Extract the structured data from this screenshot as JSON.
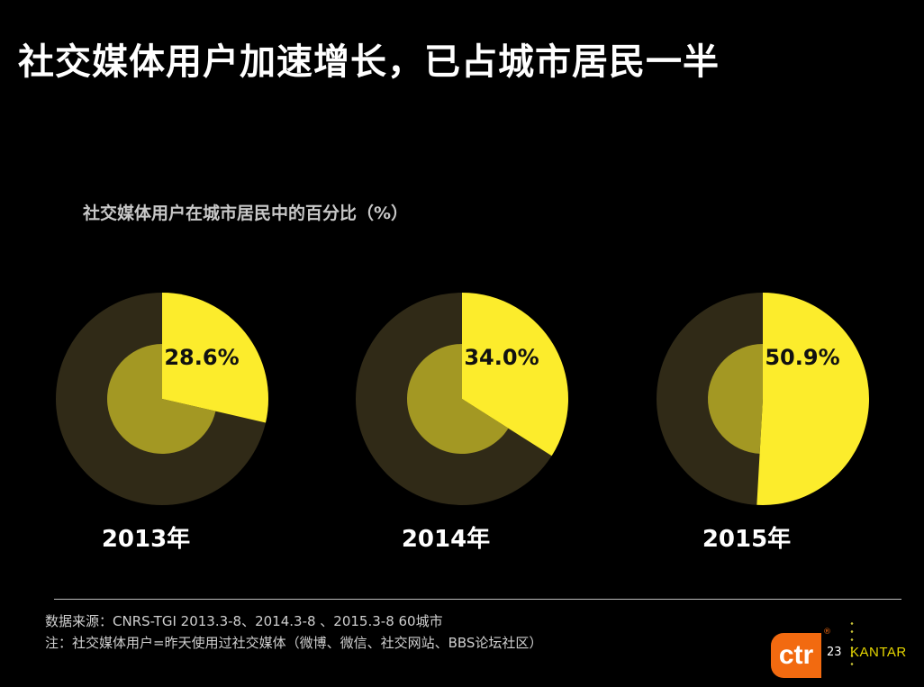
{
  "title": "社交媒体用户加速增长，已占城市居民一半",
  "chart_data": {
    "type": "pie",
    "title": "社交媒体用户在城市居民中的百分比（%）",
    "unit": "%",
    "charts": [
      {
        "year": "2013年",
        "value": 28.6,
        "label": "28.6%"
      },
      {
        "year": "2014年",
        "value": 34.0,
        "label": "34.0%"
      },
      {
        "year": "2015年",
        "value": 50.9,
        "label": "50.9%"
      }
    ],
    "colors": {
      "highlight": "#fcec2c",
      "remainder": "#302a17",
      "center": "#a39823"
    }
  },
  "footer": {
    "source": "数据来源：CNRS-TGI 2013.3-8、2014.3-8 、2015.3-8  60城市",
    "note": "注：社交媒体用户=昨天使用过社交媒体（微博、微信、社交网站、BBS论坛社区）",
    "page_number": "23",
    "logo_ctr": "ctr",
    "logo_reg": "®",
    "logo_kantar": "KANTAR",
    "logo_colors": {
      "ctr": "#f26a10",
      "kantar": "#e6d600"
    }
  }
}
